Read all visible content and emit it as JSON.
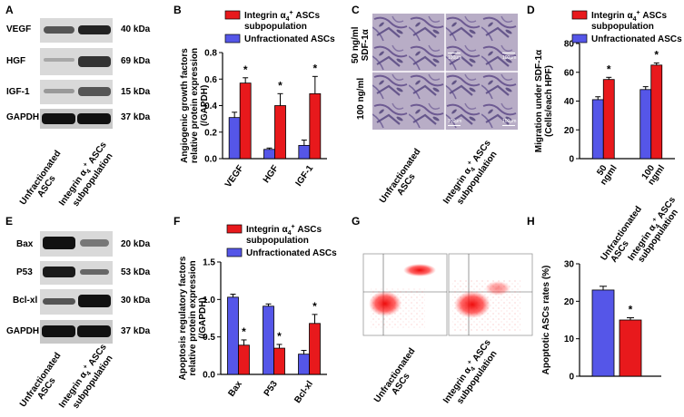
{
  "panels": {
    "A": "A",
    "B": "B",
    "C": "C",
    "D": "D",
    "E": "E",
    "F": "F",
    "G": "G",
    "H": "H"
  },
  "legend": {
    "integrin_line1": "Integrin α",
    "integrin_sub": "4",
    "integrin_sup": "+",
    "integrin_rest": " ASCs",
    "integrin_line2": "subpopulation",
    "unfrac": "Unfractionated ASCs"
  },
  "xgroups": {
    "unfrac_line1": "Unfractionated",
    "unfrac_line2": "ASCs",
    "integrin_line1": "Integrin α",
    "integrin_sub": "4",
    "integrin_sup": "+",
    "integrin_rest": " ASCs",
    "integrin_line2": "subpopulation"
  },
  "blotA": [
    {
      "name": "VEGF",
      "kda": "40 kDa"
    },
    {
      "name": "HGF",
      "kda": "69 kDa"
    },
    {
      "name": "IGF-1",
      "kda": "15 kDa"
    },
    {
      "name": "GAPDH",
      "kda": "37 kDa"
    }
  ],
  "blotE": [
    {
      "name": "Bax",
      "kda": "20 kDa"
    },
    {
      "name": "P53",
      "kda": "53 kDa"
    },
    {
      "name": "Bcl-xl",
      "kda": "30 kDa"
    },
    {
      "name": "GAPDH",
      "kda": "37 kDa"
    }
  ],
  "panelC": {
    "row1_line1": "50 ng/ml",
    "row1_line2": "SDF-1α",
    "row2": "100 ng/ml",
    "scalebar": "100μm"
  },
  "colors": {
    "red": "#e8191c",
    "blue": "#5556e8"
  },
  "chart_data": [
    {
      "id": "B",
      "type": "bar",
      "categories": [
        "VEGF",
        "HGF",
        "IGF-1"
      ],
      "series": [
        {
          "name": "Unfractionated ASCs",
          "values": [
            0.31,
            0.07,
            0.1
          ],
          "errors": [
            0.04,
            0.01,
            0.04
          ]
        },
        {
          "name": "Integrin α4+ ASCs subpopulation",
          "values": [
            0.57,
            0.4,
            0.49
          ],
          "errors": [
            0.04,
            0.09,
            0.13
          ]
        }
      ],
      "ylim": [
        0,
        0.8
      ],
      "yticks": [
        "0.0",
        "0.2",
        "0.4",
        "0.6",
        "0.8"
      ],
      "ylabel_lines": [
        "Angiogenic growth factors",
        "relative protein expression",
        "(/GAPDH)"
      ],
      "sig": [
        "*",
        "*",
        "*"
      ]
    },
    {
      "id": "D",
      "type": "bar",
      "categories": [
        "50 ngml",
        "100 ngml"
      ],
      "xlines": [
        [
          "50",
          "ngml"
        ],
        [
          "100",
          "ngml"
        ]
      ],
      "series": [
        {
          "name": "Unfractionated ASCs",
          "values": [
            41,
            48
          ],
          "errors": [
            2,
            2
          ]
        },
        {
          "name": "Integrin α4+ ASCs subpopulation",
          "values": [
            55,
            65
          ],
          "errors": [
            1.5,
            1.5
          ]
        }
      ],
      "ylim": [
        0,
        80
      ],
      "yticks": [
        "0",
        "20",
        "40",
        "60",
        "80"
      ],
      "ylabel_lines": [
        "Migration under SDF-1α",
        "(Cells/each HPF)"
      ],
      "sig": [
        "*",
        "*"
      ]
    },
    {
      "id": "F",
      "type": "bar",
      "categories": [
        "Bax",
        "P53",
        "Bcl-xl"
      ],
      "series": [
        {
          "name": "Unfractionated ASCs",
          "values": [
            1.03,
            0.91,
            0.27
          ],
          "errors": [
            0.04,
            0.03,
            0.05
          ]
        },
        {
          "name": "Integrin α4+ ASCs subpopulation",
          "values": [
            0.39,
            0.35,
            0.68
          ],
          "errors": [
            0.07,
            0.05,
            0.12
          ]
        }
      ],
      "ylim": [
        0,
        1.5
      ],
      "yticks": [
        "0.0",
        "0.5",
        "1.0",
        "1.5"
      ],
      "ylabel_lines": [
        "Apoptosis regulatory factors",
        "relative protein expression",
        "(/GAPDH)"
      ],
      "sig": [
        "*",
        "*",
        "*"
      ]
    },
    {
      "id": "H",
      "type": "bar",
      "categories": [
        "Unfractionated ASCs",
        "Integrin α4+ ASCs subpopulation"
      ],
      "values": [
        23,
        15
      ],
      "errors": [
        1,
        0.6
      ],
      "ylim": [
        0,
        30
      ],
      "yticks": [
        "0",
        "10",
        "20",
        "30"
      ],
      "ylabel": "Apoptotic ASCs rates (%)",
      "sig": [
        "",
        "*"
      ]
    }
  ]
}
